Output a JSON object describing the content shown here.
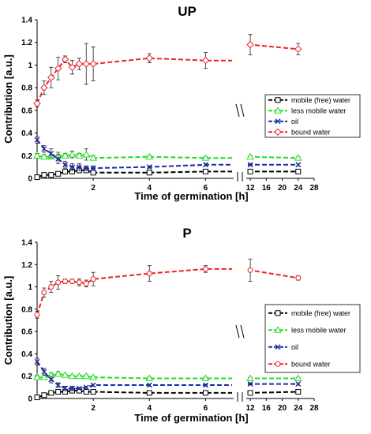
{
  "chart_data": [
    {
      "type": "line",
      "title": "UP",
      "xlabel": "Time of germination [h]",
      "ylabel": "Contribution [a.u.]",
      "ylim": [
        0,
        1.4
      ],
      "yticks": [
        "0",
        "0.2",
        "0.4",
        "0.6",
        "0.8",
        "1",
        "1.2",
        "1.4"
      ],
      "x_segments": [
        {
          "range": [
            0,
            7
          ],
          "ticks": [
            2,
            4,
            6
          ]
        },
        {
          "range": [
            11,
            28
          ],
          "ticks": [
            12,
            16,
            20,
            24,
            28
          ]
        }
      ],
      "axis_break": true,
      "legend_position": "right, middle",
      "series": [
        {
          "name": "mobile (free) water",
          "color": "#000000",
          "marker": "square",
          "x": [
            0,
            0.25,
            0.5,
            0.75,
            1,
            1.25,
            1.5,
            1.75,
            2,
            4,
            6,
            12,
            24
          ],
          "y": [
            0.01,
            0.03,
            0.03,
            0.04,
            0.06,
            0.06,
            0.07,
            0.07,
            0.05,
            0.05,
            0.06,
            0.06,
            0.06
          ],
          "err": [
            0.01,
            0.01,
            0.01,
            0.01,
            0.02,
            0.02,
            0.02,
            0.02,
            0.01,
            0.01,
            0.01,
            0.01,
            0.01
          ]
        },
        {
          "name": "less mobile water",
          "color": "#22dd22",
          "marker": "triangle",
          "x": [
            0,
            0.25,
            0.5,
            0.75,
            1,
            1.25,
            1.5,
            1.75,
            2,
            4,
            6,
            12,
            24
          ],
          "y": [
            0.2,
            0.19,
            0.19,
            0.2,
            0.2,
            0.21,
            0.2,
            0.21,
            0.18,
            0.19,
            0.18,
            0.19,
            0.18
          ],
          "err": [
            0.02,
            0.02,
            0.02,
            0.03,
            0.02,
            0.03,
            0.02,
            0.05,
            0.02,
            0.01,
            0.01,
            0.01,
            0.01
          ]
        },
        {
          "name": "oil",
          "color": "#1a2aa8",
          "marker": "x",
          "x": [
            0,
            0.25,
            0.5,
            0.75,
            1,
            1.25,
            1.5,
            1.75,
            2,
            4,
            6,
            12,
            24
          ],
          "y": [
            0.34,
            0.26,
            0.22,
            0.17,
            0.12,
            0.1,
            0.1,
            0.09,
            0.09,
            0.1,
            0.12,
            0.12,
            0.12
          ],
          "err": [
            0.03,
            0.03,
            0.04,
            0.04,
            0.03,
            0.03,
            0.03,
            0.02,
            0.02,
            0.01,
            0.01,
            0.01,
            0.01
          ]
        },
        {
          "name": "bound water",
          "color": "#ee2222",
          "marker": "diamond",
          "x": [
            0,
            0.25,
            0.5,
            0.75,
            1,
            1.25,
            1.5,
            1.75,
            2,
            4,
            6,
            12,
            24
          ],
          "y": [
            0.66,
            0.8,
            0.89,
            0.97,
            1.05,
            0.98,
            1.01,
            1.01,
            1.01,
            1.06,
            1.04,
            1.18,
            1.14
          ],
          "err": [
            0.03,
            0.06,
            0.09,
            0.1,
            0.03,
            0.06,
            0.05,
            0.18,
            0.15,
            0.04,
            0.07,
            0.09,
            0.05
          ]
        }
      ]
    },
    {
      "type": "line",
      "title": "P",
      "xlabel": "Time of germination [h]",
      "ylabel": "Contribution [a.u.]",
      "ylim": [
        0,
        1.4
      ],
      "yticks": [
        "0",
        "0.2",
        "0.4",
        "0.6",
        "0.8",
        "1",
        "1.2",
        "1.4"
      ],
      "x_segments": [
        {
          "range": [
            0,
            7
          ],
          "ticks": [
            2,
            4,
            6
          ]
        },
        {
          "range": [
            11,
            28
          ],
          "ticks": [
            12,
            16,
            20,
            24,
            28
          ]
        }
      ],
      "axis_break": true,
      "legend_position": "right, middle",
      "series": [
        {
          "name": "mobile (free) water",
          "color": "#000000",
          "marker": "square",
          "x": [
            0,
            0.25,
            0.5,
            0.75,
            1,
            1.25,
            1.5,
            1.75,
            2,
            4,
            6,
            12,
            24
          ],
          "y": [
            0.01,
            0.03,
            0.05,
            0.06,
            0.06,
            0.07,
            0.07,
            0.06,
            0.06,
            0.05,
            0.05,
            0.05,
            0.06
          ],
          "err": [
            0.01,
            0.01,
            0.02,
            0.02,
            0.02,
            0.02,
            0.02,
            0.02,
            0.01,
            0.01,
            0.01,
            0.01,
            0.01
          ]
        },
        {
          "name": "less mobile water",
          "color": "#22dd22",
          "marker": "triangle",
          "x": [
            0,
            0.25,
            0.5,
            0.75,
            1,
            1.25,
            1.5,
            1.75,
            2,
            4,
            6,
            12,
            24
          ],
          "y": [
            0.19,
            0.19,
            0.21,
            0.22,
            0.21,
            0.2,
            0.2,
            0.2,
            0.19,
            0.18,
            0.18,
            0.18,
            0.18
          ],
          "err": [
            0.02,
            0.02,
            0.02,
            0.02,
            0.01,
            0.01,
            0.01,
            0.01,
            0.01,
            0.01,
            0.01,
            0.01,
            0.01
          ]
        },
        {
          "name": "oil",
          "color": "#1a2aa8",
          "marker": "x",
          "x": [
            0,
            0.25,
            0.5,
            0.75,
            1,
            1.25,
            1.5,
            1.75,
            2,
            4,
            6,
            12,
            24
          ],
          "y": [
            0.33,
            0.24,
            0.17,
            0.12,
            0.09,
            0.09,
            0.09,
            0.1,
            0.12,
            0.12,
            0.12,
            0.13,
            0.13
          ],
          "err": [
            0.03,
            0.03,
            0.03,
            0.02,
            0.02,
            0.02,
            0.01,
            0.01,
            0.01,
            0.01,
            0.01,
            0.01,
            0.01
          ]
        },
        {
          "name": "bound water",
          "color": "#ee2222",
          "marker": "circle",
          "x": [
            0,
            0.25,
            0.5,
            0.75,
            1,
            1.25,
            1.5,
            1.75,
            2,
            4,
            6,
            12,
            24
          ],
          "y": [
            0.75,
            0.95,
            1.0,
            1.04,
            1.05,
            1.05,
            1.04,
            1.03,
            1.07,
            1.12,
            1.16,
            1.15,
            1.08
          ],
          "err": [
            0.03,
            0.04,
            0.05,
            0.06,
            0.02,
            0.02,
            0.03,
            0.03,
            0.06,
            0.07,
            0.03,
            0.1,
            0.02
          ]
        }
      ]
    }
  ]
}
